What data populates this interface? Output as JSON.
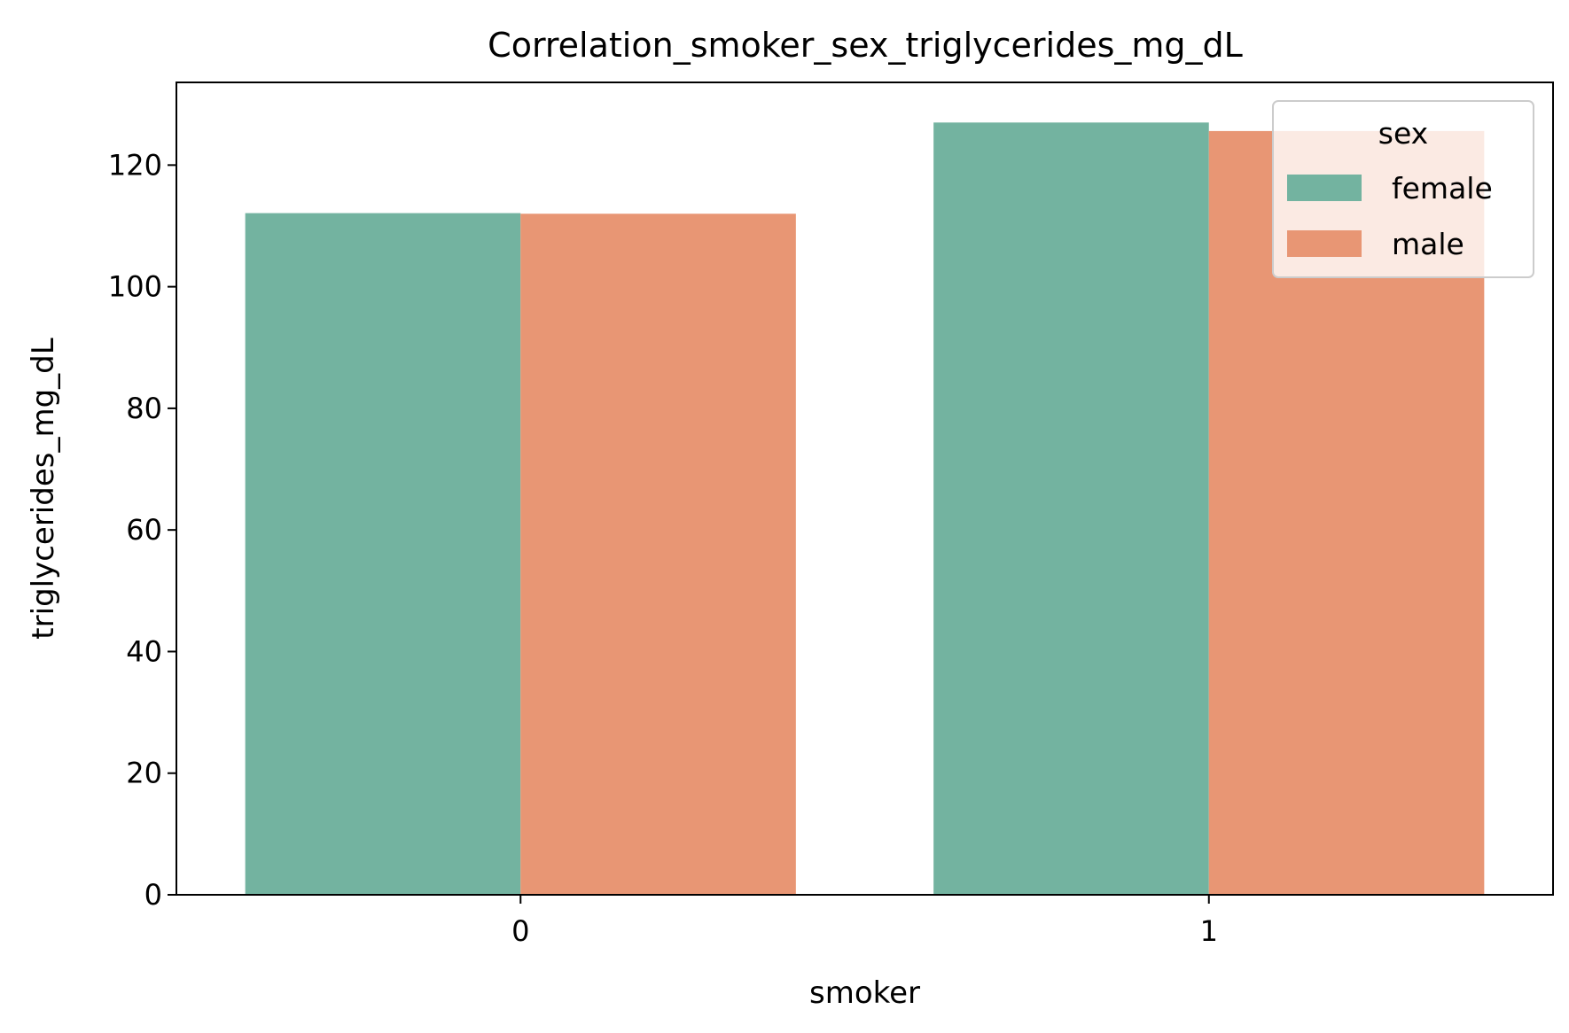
{
  "chart_data": {
    "type": "bar",
    "title": "Correlation_smoker_sex_triglycerides_mg_dL",
    "xlabel": "smoker",
    "ylabel": "triglycerides_mg_dL",
    "categories": [
      "0",
      "1"
    ],
    "series": [
      {
        "name": "female",
        "color": "#73b3a0",
        "values": [
          112.1,
          127.0
        ]
      },
      {
        "name": "male",
        "color": "#e89674",
        "values": [
          112.0,
          125.6
        ]
      }
    ],
    "ylim": [
      0,
      133.6
    ],
    "yticks": [
      0,
      20,
      40,
      60,
      80,
      100,
      120
    ],
    "grid": false,
    "legend": {
      "title": "sex",
      "placement": "top-right"
    }
  }
}
